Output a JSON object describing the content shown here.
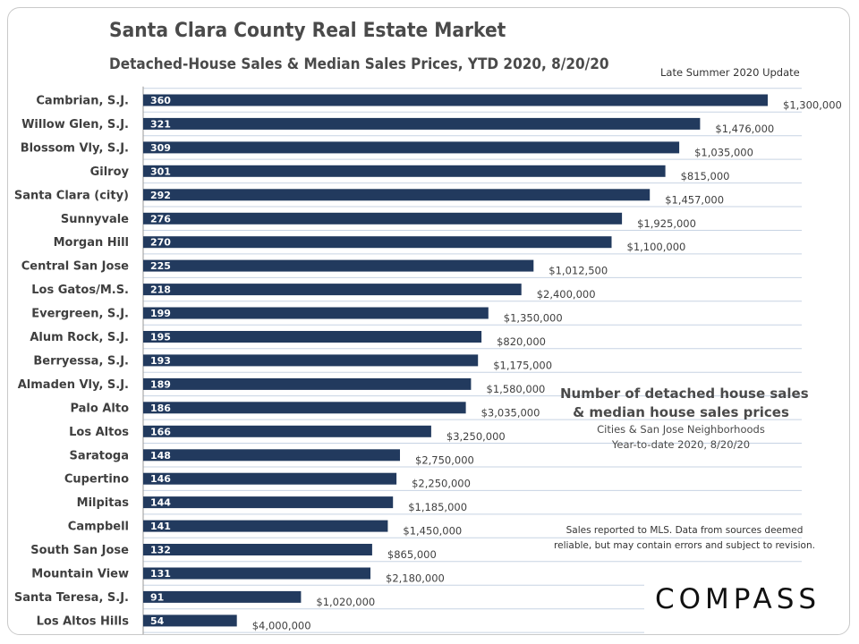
{
  "header": {
    "title": "Santa Clara County Real Estate Market",
    "subtitle": "Detached-House Sales & Median Sales Prices, YTD 2020, 8/20/20",
    "update_note": "Late Summer 2020 Update"
  },
  "annotation": {
    "line1": "Number of detached house sales",
    "line2": "& median house sales prices",
    "line3": "Cities & San Jose Neighborhoods",
    "line4": "Year-to-date 2020, 8/20/20"
  },
  "disclaimer": {
    "line1": "Sales reported to MLS. Data from sources deemed",
    "line2": "reliable, but may contain errors and subject to revision."
  },
  "logo": {
    "text": "COMPASS"
  },
  "colors": {
    "bar": "#223a5e",
    "grid": "#c7d3e3",
    "axis": "#9a9a9a",
    "text": "#3f3f3f"
  },
  "chart_data": {
    "type": "bar",
    "orientation": "horizontal",
    "title": "Santa Clara County Real Estate Market",
    "xlabel": "Number of detached house sales",
    "ylabel": "",
    "xlim": [
      0,
      360
    ],
    "categories": [
      "Cambrian, S.J.",
      "Willow Glen, S.J.",
      "Blossom Vly, S.J.",
      "Gilroy",
      "Santa Clara (city)",
      "Sunnyvale",
      "Morgan Hill",
      "Central San Jose",
      "Los Gatos/M.S.",
      "Evergreen, S.J.",
      "Alum Rock, S.J.",
      "Berryessa, S.J.",
      "Almaden Vly, S.J.",
      "Palo Alto",
      "Los Altos",
      "Saratoga",
      "Cupertino",
      "Milpitas",
      "Campbell",
      "South San Jose",
      "Mountain View",
      "Santa Teresa, S.J.",
      "Los Altos Hills"
    ],
    "series": [
      {
        "name": "Detached house sales",
        "values": [
          360,
          321,
          309,
          301,
          292,
          276,
          270,
          225,
          218,
          199,
          195,
          193,
          189,
          186,
          166,
          148,
          146,
          144,
          141,
          132,
          131,
          91,
          54
        ]
      },
      {
        "name": "Median sales price",
        "labels": [
          "$1,300,000",
          "$1,476,000",
          "$1,035,000",
          "$815,000",
          "$1,457,000",
          "$1,925,000",
          "$1,100,000",
          "$1,012,500",
          "$2,400,000",
          "$1,350,000",
          "$820,000",
          "$1,175,000",
          "$1,580,000",
          "$3,035,000",
          "$3,250,000",
          "$2,750,000",
          "$2,250,000",
          "$1,185,000",
          "$1,450,000",
          "$865,000",
          "$2,180,000",
          "$1,020,000",
          "$4,000,000"
        ]
      }
    ]
  }
}
